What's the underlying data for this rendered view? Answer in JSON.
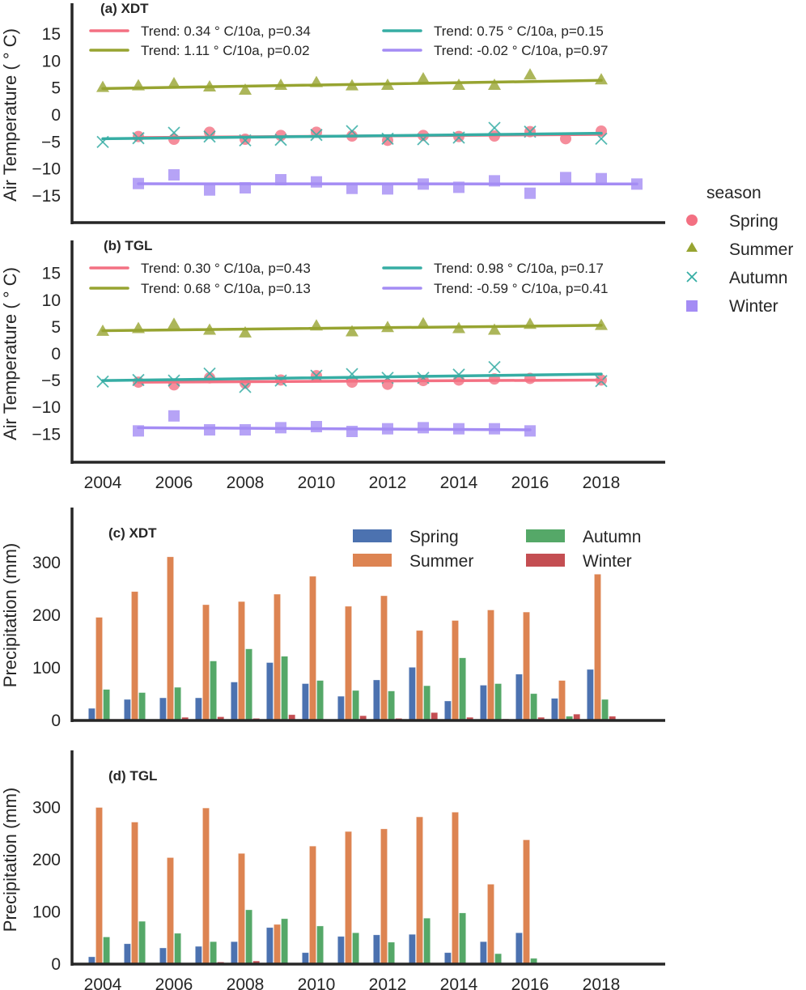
{
  "chart_data": [
    {
      "id": "a",
      "type": "scatter",
      "title": "(a) XDT",
      "xlabel": "",
      "ylabel": "Air Temperature ( ° C)",
      "xlim": [
        2003.15,
        2019.8
      ],
      "ylim": [
        -20,
        20.5
      ],
      "yticks": [
        15,
        10,
        5,
        0,
        -5,
        -10,
        -15
      ],
      "ytick_labels": [
        "15",
        "10",
        "5",
        "0",
        "−5",
        "−10",
        "−15"
      ],
      "grid": false,
      "series": [
        {
          "name": "Spring",
          "color": "#f37082",
          "marker": "circle",
          "x": [
            2005,
            2006,
            2007,
            2008,
            2009,
            2010,
            2011,
            2012,
            2013,
            2014,
            2015,
            2016,
            2017,
            2018
          ],
          "y": [
            -4.0,
            -4.5,
            -3.2,
            -4.5,
            -3.8,
            -3.2,
            -3.9,
            -4.7,
            -3.8,
            -4.0,
            -3.9,
            -3.1,
            -4.4,
            -3.0
          ],
          "trend_label": "Trend: 0.34 ° C/10a, p=0.34",
          "trend": {
            "x": [
              2005,
              2018
            ],
            "y": [
              -4.2,
              -3.6
            ]
          }
        },
        {
          "name": "Summer",
          "color": "#97a431",
          "marker": "triangle",
          "x": [
            2004,
            2005,
            2006,
            2007,
            2008,
            2009,
            2010,
            2011,
            2012,
            2013,
            2014,
            2015,
            2016,
            2018
          ],
          "y": [
            5.0,
            5.3,
            5.7,
            5.1,
            4.5,
            5.4,
            5.9,
            5.3,
            5.4,
            6.6,
            5.4,
            5.4,
            7.3,
            6.4
          ],
          "trend_label": "Trend: 1.11 ° C/10a, p=0.02",
          "trend": {
            "x": [
              2004,
              2018
            ],
            "y": [
              4.9,
              6.4
            ]
          }
        },
        {
          "name": "Autumn",
          "color": "#36ada4",
          "marker": "x",
          "x": [
            2004,
            2005,
            2006,
            2007,
            2008,
            2009,
            2010,
            2011,
            2012,
            2013,
            2014,
            2015,
            2016,
            2018
          ],
          "y": [
            -5.0,
            -4.3,
            -3.3,
            -4.0,
            -4.7,
            -4.6,
            -3.7,
            -3.0,
            -4.4,
            -4.5,
            -4.2,
            -2.4,
            -3.1,
            -4.4
          ],
          "trend_label": "Trend: 0.75 ° C/10a, p=0.15",
          "trend": {
            "x": [
              2004,
              2018
            ],
            "y": [
              -4.4,
              -3.4
            ]
          }
        },
        {
          "name": "Winter",
          "color": "#a48cf4",
          "marker": "square",
          "x": [
            2005,
            2006,
            2007,
            2008,
            2009,
            2010,
            2011,
            2012,
            2013,
            2014,
            2015,
            2016,
            2017,
            2018,
            2019
          ],
          "y": [
            -12.7,
            -11.1,
            -13.9,
            -13.5,
            -12.0,
            -12.4,
            -13.6,
            -13.7,
            -12.8,
            -13.4,
            -12.2,
            -14.5,
            -11.6,
            -11.8,
            -12.8
          ],
          "trend_label": "Trend: -0.02 ° C/10a, p=0.97",
          "trend": {
            "x": [
              2005,
              2019
            ],
            "y": [
              -12.75,
              -12.78
            ]
          }
        }
      ]
    },
    {
      "id": "b",
      "type": "scatter",
      "title": "(b) TGL",
      "xlabel": "",
      "ylabel": "Air Temperature ( ° C)",
      "xlim": [
        2003.15,
        2019.8
      ],
      "ylim": [
        -20,
        20.5
      ],
      "xticks": [
        2004,
        2006,
        2008,
        2010,
        2012,
        2014,
        2016,
        2018
      ],
      "xtick_labels": [
        "2004",
        "2006",
        "2008",
        "2010",
        "2012",
        "2014",
        "2016",
        "2018"
      ],
      "yticks": [
        15,
        10,
        5,
        0,
        -5,
        -10,
        -15
      ],
      "ytick_labels": [
        "15",
        "10",
        "5",
        "0",
        "−5",
        "−10",
        "−15"
      ],
      "grid": false,
      "series": [
        {
          "name": "Spring",
          "color": "#f37082",
          "marker": "circle",
          "x": [
            2005,
            2006,
            2007,
            2008,
            2009,
            2010,
            2011,
            2012,
            2013,
            2014,
            2015,
            2016,
            2018
          ],
          "y": [
            -5.3,
            -5.8,
            -4.5,
            -5.5,
            -4.9,
            -4.1,
            -5.3,
            -5.7,
            -5.0,
            -4.9,
            -4.7,
            -4.6,
            -4.9
          ],
          "trend_label": "Trend: 0.30 ° C/10a, p=0.43",
          "trend": {
            "x": [
              2005,
              2018
            ],
            "y": [
              -5.3,
              -4.9
            ]
          }
        },
        {
          "name": "Summer",
          "color": "#97a431",
          "marker": "triangle",
          "x": [
            2004,
            2005,
            2006,
            2007,
            2008,
            2010,
            2011,
            2012,
            2013,
            2014,
            2015,
            2016,
            2018
          ],
          "y": [
            4.1,
            4.6,
            5.4,
            4.3,
            3.8,
            5.1,
            4.0,
            4.8,
            5.5,
            4.6,
            4.3,
            5.4,
            5.2
          ],
          "trend_label": "Trend: 0.68 ° C/10a, p=0.13",
          "trend": {
            "x": [
              2004,
              2018
            ],
            "y": [
              4.3,
              5.3
            ]
          }
        },
        {
          "name": "Autumn",
          "color": "#36ada4",
          "marker": "x",
          "x": [
            2004,
            2005,
            2006,
            2007,
            2008,
            2009,
            2010,
            2011,
            2012,
            2013,
            2014,
            2015,
            2018
          ],
          "y": [
            -5.2,
            -4.9,
            -5.0,
            -3.7,
            -6.2,
            -5.0,
            -4.1,
            -3.8,
            -4.5,
            -4.5,
            -3.9,
            -2.5,
            -5.1
          ],
          "trend_label": "Trend: 0.98 ° C/10a, p=0.17",
          "trend": {
            "x": [
              2004,
              2018
            ],
            "y": [
              -5.0,
              -3.8
            ]
          }
        },
        {
          "name": "Winter",
          "color": "#a48cf4",
          "marker": "square",
          "x": [
            2005,
            2006,
            2007,
            2008,
            2009,
            2010,
            2011,
            2012,
            2013,
            2014,
            2015,
            2016
          ],
          "y": [
            -14.4,
            -11.6,
            -14.2,
            -14.2,
            -13.8,
            -13.6,
            -14.5,
            -14.0,
            -13.8,
            -14.0,
            -14.0,
            -14.4
          ],
          "trend_label": "Trend: -0.59 ° C/10a, p=0.41",
          "trend": {
            "x": [
              2005,
              2016
            ],
            "y": [
              -13.8,
              -14.2
            ]
          }
        }
      ]
    },
    {
      "id": "c",
      "type": "bar",
      "title": "(c) XDT",
      "xlabel": "",
      "ylabel": "Precipitation (mm)",
      "ylim": [
        0,
        405
      ],
      "yticks": [
        0,
        100,
        200,
        300
      ],
      "ytick_labels": [
        "0",
        "100",
        "200",
        "300"
      ],
      "grid": false,
      "legend": "top-right",
      "categories": [
        2004,
        2005,
        2006,
        2007,
        2008,
        2009,
        2010,
        2011,
        2012,
        2013,
        2014,
        2015,
        2016,
        2017,
        2018
      ],
      "series": [
        {
          "name": "Spring",
          "color": "#4c72b0",
          "values": [
            23,
            40,
            43,
            43,
            73,
            110,
            70,
            46,
            77,
            101,
            37,
            67,
            88,
            42,
            97
          ]
        },
        {
          "name": "Summer",
          "color": "#dd8452",
          "values": [
            196,
            245,
            311,
            220,
            226,
            240,
            274,
            217,
            237,
            171,
            190,
            210,
            206,
            76,
            278
          ]
        },
        {
          "name": "Autumn",
          "color": "#55a868",
          "values": [
            59,
            53,
            63,
            113,
            136,
            122,
            76,
            57,
            56,
            66,
            119,
            70,
            51,
            8,
            40
          ]
        },
        {
          "name": "Winter",
          "color": "#c44e52",
          "values": [
            0,
            0,
            6,
            7,
            4,
            11,
            0,
            9,
            4,
            15,
            6,
            3,
            6,
            12,
            8
          ]
        }
      ]
    },
    {
      "id": "d",
      "type": "bar",
      "title": "(d) TGL",
      "xlabel": "",
      "ylabel": "Precipitation (mm)",
      "ylim": [
        0,
        405
      ],
      "yticks": [
        0,
        100,
        200,
        300
      ],
      "ytick_labels": [
        "0",
        "100",
        "200",
        "300"
      ],
      "xticks": [
        2004,
        2006,
        2008,
        2010,
        2012,
        2014,
        2016,
        2018
      ],
      "xtick_labels": [
        "2004",
        "2006",
        "2008",
        "2010",
        "2012",
        "2014",
        "2016",
        "2018"
      ],
      "grid": false,
      "categories": [
        2004,
        2005,
        2006,
        2007,
        2008,
        2009,
        2010,
        2011,
        2012,
        2013,
        2014,
        2015,
        2016,
        2017,
        2018
      ],
      "series": [
        {
          "name": "Spring",
          "color": "#4c72b0",
          "values": [
            14,
            39,
            31,
            34,
            43,
            70,
            22,
            53,
            56,
            57,
            22,
            43,
            60,
            0,
            0
          ]
        },
        {
          "name": "Summer",
          "color": "#dd8452",
          "values": [
            300,
            272,
            204,
            299,
            212,
            76,
            226,
            254,
            259,
            282,
            291,
            153,
            238,
            0,
            0
          ]
        },
        {
          "name": "Autumn",
          "color": "#55a868",
          "values": [
            52,
            82,
            59,
            43,
            104,
            87,
            73,
            60,
            42,
            88,
            98,
            20,
            11,
            0,
            0
          ]
        },
        {
          "name": "Winter",
          "color": "#c44e52",
          "values": [
            0,
            0,
            2,
            4,
            6,
            0,
            0,
            0,
            2,
            0,
            0,
            2,
            0,
            0,
            0
          ]
        }
      ]
    }
  ],
  "season_legend": {
    "title": "season",
    "items": [
      {
        "label": "Spring",
        "marker": "circle",
        "color": "#f37082"
      },
      {
        "label": "Summer",
        "marker": "triangle",
        "color": "#97a431"
      },
      {
        "label": "Autumn",
        "marker": "x",
        "color": "#36ada4"
      },
      {
        "label": "Winter",
        "marker": "square",
        "color": "#a48cf4"
      }
    ]
  }
}
